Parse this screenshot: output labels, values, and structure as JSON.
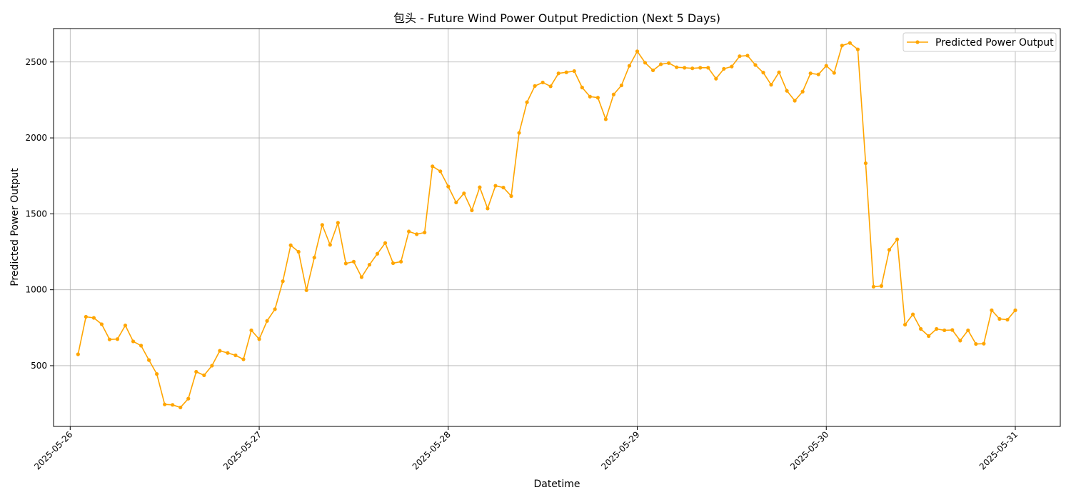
{
  "chart_data": {
    "type": "line",
    "title": "包头 - Future Wind Power Output Prediction (Next 5 Days)",
    "xlabel": "Datetime",
    "ylabel": "Predicted Power Output",
    "ylim": [
      100,
      2720
    ],
    "xlim_days": [
      -0.088,
      5.238
    ],
    "x_tick_labels": [
      "2025-05-26",
      "2025-05-27",
      "2025-05-28",
      "2025-05-29",
      "2025-05-30",
      "2025-05-31"
    ],
    "y_ticks": [
      500,
      1000,
      1500,
      2000,
      2500
    ],
    "grid": true,
    "legend_position": "top-right",
    "series": [
      {
        "name": "Predicted Power Output",
        "color": "#FFA500",
        "x_start": "2025-05-26 01:00",
        "x_step_hours": 1,
        "values": [
          575,
          822,
          815,
          773,
          673,
          675,
          765,
          660,
          632,
          537,
          445,
          245,
          242,
          225,
          283,
          460,
          437,
          500,
          598,
          584,
          568,
          542,
          733,
          675,
          795,
          872,
          1056,
          1293,
          1250,
          997,
          1212,
          1427,
          1296,
          1441,
          1173,
          1185,
          1083,
          1165,
          1237,
          1308,
          1175,
          1185,
          1384,
          1366,
          1377,
          1813,
          1780,
          1680,
          1575,
          1635,
          1523,
          1675,
          1535,
          1685,
          1673,
          1617,
          2033,
          2235,
          2342,
          2365,
          2340,
          2425,
          2432,
          2440,
          2332,
          2272,
          2265,
          2123,
          2286,
          2346,
          2475,
          2570,
          2495,
          2445,
          2485,
          2493,
          2465,
          2462,
          2458,
          2462,
          2462,
          2390,
          2455,
          2470,
          2538,
          2542,
          2480,
          2430,
          2350,
          2432,
          2310,
          2245,
          2305,
          2425,
          2418,
          2475,
          2428,
          2608,
          2625,
          2583,
          1833,
          1020,
          1025,
          1263,
          1332,
          770,
          838,
          742,
          695,
          742,
          733,
          735,
          665,
          733,
          643,
          645,
          865,
          808,
          803,
          865
        ]
      }
    ]
  }
}
